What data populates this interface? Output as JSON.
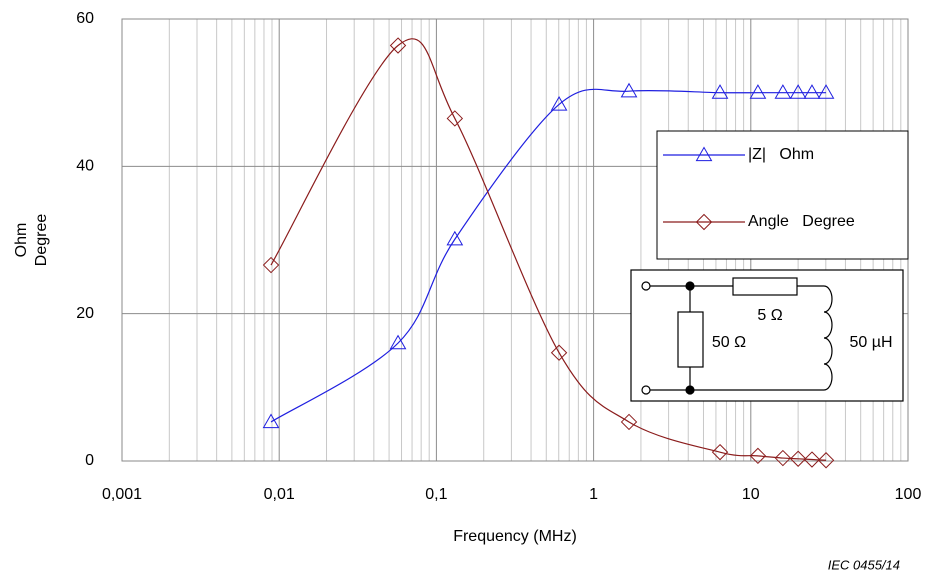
{
  "chart_data": {
    "type": "line",
    "x": [
      0.00887,
      0.057,
      0.131,
      0.603,
      1.68,
      6.37,
      11.1,
      16.0,
      20.0,
      24.5,
      30.1
    ],
    "series": [
      {
        "name": "|Z|   Ohm",
        "color": "#1f1fe0",
        "marker": "triangle",
        "values": [
          5.3,
          16.0,
          30.1,
          48.4,
          50.2,
          50.0,
          50.0,
          50.0,
          50.0,
          50.0,
          50.0
        ]
      },
      {
        "name": "Angle   Degree",
        "color": "#8b1c1c",
        "marker": "diamond",
        "values": [
          26.6,
          56.4,
          46.5,
          14.7,
          5.3,
          1.2,
          0.7,
          0.4,
          0.3,
          0.2,
          0.1
        ]
      }
    ],
    "xlabel": "Frequency   (MHz)",
    "ylabel": [
      "Ohm",
      "Degree"
    ],
    "xscale": "log",
    "xlim": [
      0.001,
      100
    ],
    "xticks": [
      {
        "value": 0.001,
        "label": "0,001"
      },
      {
        "value": 0.01,
        "label": "0,01"
      },
      {
        "value": 0.1,
        "label": "0,1"
      },
      1,
      10,
      100
    ],
    "ylim": [
      0,
      60
    ],
    "yticks": [
      0,
      20,
      40,
      60
    ],
    "grid": true,
    "legend": "right",
    "circuit_labels": [
      "5 Ω",
      "50 Ω",
      "50 µH"
    ],
    "source": "IEC  0455/14"
  }
}
